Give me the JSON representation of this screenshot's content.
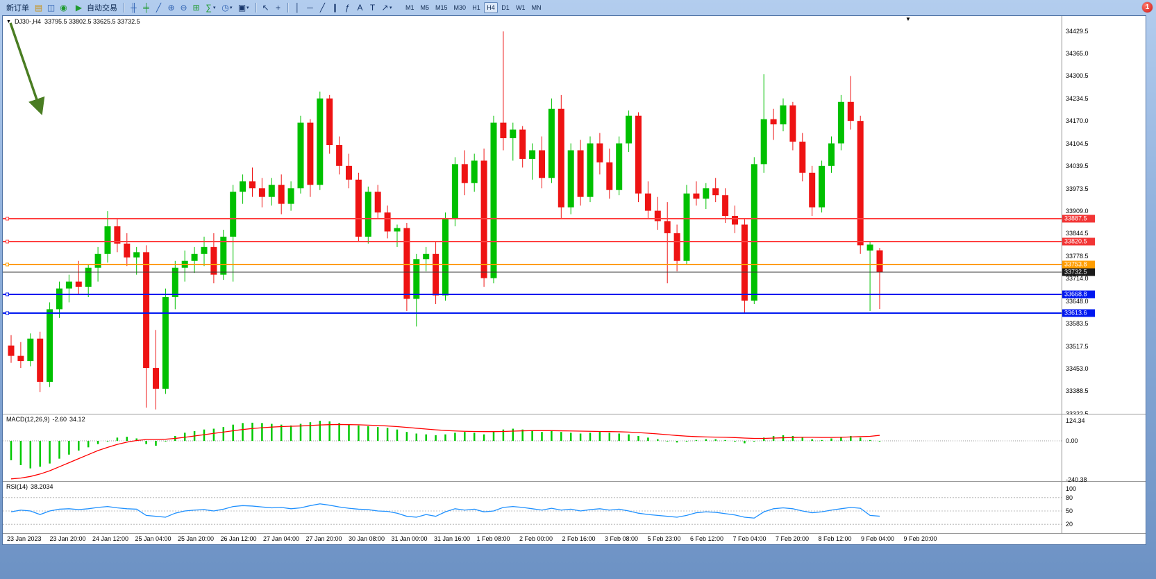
{
  "window": {
    "badge": "1"
  },
  "toolbar": {
    "new_order": "新订单",
    "auto_trading": "自动交易",
    "timeframes": [
      "M1",
      "M5",
      "M15",
      "M30",
      "H1",
      "H4",
      "D1",
      "W1",
      "MN"
    ],
    "active_timeframe": "H4"
  },
  "icons": {
    "triangle_down": "▼",
    "gold": "▤",
    "profile": "◫",
    "globe": "◉",
    "play": "▶",
    "bars": "╫",
    "candles": "╪",
    "line_chart": "╱",
    "zoom_in": "⊕",
    "zoom_out": "⊖",
    "tile": "⊞",
    "indicators": "∑",
    "clock": "◷",
    "template": "▣",
    "cursor": "↖",
    "crosshair": "+",
    "vline": "│",
    "hline": "─",
    "trendline": "╱",
    "channel": "∥",
    "fibonacci": "ƒ",
    "text": "A",
    "label": "T",
    "arrows": "↗",
    "dropdown": "▾"
  },
  "chart_header": {
    "symbol_tf": "DJ30-,H4",
    "ohlc": "33795.5 33802.5 33625.5 33732.5"
  },
  "price_axis_labels": [
    "34429.5",
    "34365.0",
    "34300.5",
    "34234.5",
    "34170.0",
    "34104.5",
    "34039.5",
    "33973.5",
    "33909.0",
    "33844.5",
    "33778.5",
    "33714.0",
    "33648.0",
    "33583.5",
    "33517.5",
    "33453.0",
    "33388.5",
    "33322.5"
  ],
  "macd": {
    "name": "MACD(12,26,9)",
    "value": "-2.60",
    "signal": "34.12",
    "axis_labels": [
      "124.34",
      "0.00",
      "-240.38"
    ]
  },
  "rsi": {
    "name": "RSI(14)",
    "value": "38.2034",
    "axis_labels": [
      "100",
      "80",
      "50",
      "20"
    ]
  },
  "chart_data": {
    "type": "candlestick",
    "symbol": "DJ30-",
    "timeframe": "H4",
    "ohlc_current": {
      "open": 33795.5,
      "high": 33802.5,
      "low": 33625.5,
      "close": 33732.5
    },
    "y_axis": {
      "top": 34429.5,
      "bottom": 33322.5
    },
    "colors": {
      "up": "#00c000",
      "down": "#ee1313"
    },
    "candles": [
      [
        33520,
        33550,
        33470,
        33490
      ],
      [
        33490,
        33530,
        33455,
        33475
      ],
      [
        33475,
        33555,
        33460,
        33540
      ],
      [
        33540,
        33560,
        33385,
        33415
      ],
      [
        33415,
        33645,
        33400,
        33625
      ],
      [
        33625,
        33705,
        33600,
        33685
      ],
      [
        33685,
        33725,
        33645,
        33705
      ],
      [
        33705,
        33765,
        33670,
        33690
      ],
      [
        33690,
        33755,
        33660,
        33745
      ],
      [
        33745,
        33805,
        33705,
        33785
      ],
      [
        33785,
        33909,
        33760,
        33865
      ],
      [
        33865,
        33885,
        33790,
        33815
      ],
      [
        33815,
        33845,
        33750,
        33775
      ],
      [
        33775,
        33805,
        33725,
        33790
      ],
      [
        33790,
        33810,
        33340,
        33455
      ],
      [
        33455,
        33565,
        33335,
        33395
      ],
      [
        33395,
        33685,
        33380,
        33660
      ],
      [
        33660,
        33765,
        33625,
        33745
      ],
      [
        33745,
        33795,
        33705,
        33765
      ],
      [
        33765,
        33805,
        33730,
        33785
      ],
      [
        33785,
        33835,
        33750,
        33805
      ],
      [
        33805,
        33845,
        33700,
        33725
      ],
      [
        33725,
        33855,
        33710,
        33835
      ],
      [
        33835,
        33985,
        33705,
        33965
      ],
      [
        33965,
        34015,
        33930,
        33995
      ],
      [
        33995,
        34035,
        33950,
        33975
      ],
      [
        33975,
        34005,
        33920,
        33950
      ],
      [
        33950,
        34005,
        33925,
        33985
      ],
      [
        33985,
        34015,
        33900,
        33930
      ],
      [
        33930,
        33995,
        33910,
        33975
      ],
      [
        33975,
        34185,
        33960,
        34165
      ],
      [
        34165,
        34175,
        33950,
        33985
      ],
      [
        33985,
        34255,
        33970,
        34235
      ],
      [
        34235,
        34245,
        34075,
        34100
      ],
      [
        34100,
        34125,
        34015,
        34040
      ],
      [
        34040,
        34075,
        33975,
        34000
      ],
      [
        34000,
        34020,
        33820,
        33835
      ],
      [
        33835,
        33980,
        33815,
        33965
      ],
      [
        33965,
        33985,
        33885,
        33905
      ],
      [
        33905,
        33925,
        33830,
        33850
      ],
      [
        33850,
        33870,
        33805,
        33860
      ],
      [
        33860,
        33875,
        33620,
        33655
      ],
      [
        33655,
        33785,
        33575,
        33770
      ],
      [
        33770,
        33805,
        33735,
        33785
      ],
      [
        33785,
        33820,
        33640,
        33665
      ],
      [
        33665,
        33905,
        33650,
        33885
      ],
      [
        33885,
        34065,
        33865,
        34045
      ],
      [
        34045,
        34085,
        33955,
        33990
      ],
      [
        33990,
        34075,
        33965,
        34055
      ],
      [
        34055,
        34090,
        33690,
        33715
      ],
      [
        33715,
        34185,
        33700,
        34165
      ],
      [
        34165,
        34429,
        34085,
        34120
      ],
      [
        34120,
        34165,
        34055,
        34145
      ],
      [
        34145,
        34155,
        34035,
        34060
      ],
      [
        34060,
        34105,
        34000,
        34085
      ],
      [
        34085,
        34125,
        33975,
        34005
      ],
      [
        34005,
        34235,
        33990,
        34205
      ],
      [
        34205,
        34245,
        33885,
        33920
      ],
      [
        33920,
        34105,
        33900,
        34085
      ],
      [
        34085,
        34115,
        33925,
        33950
      ],
      [
        33950,
        34125,
        33935,
        34105
      ],
      [
        34105,
        34135,
        34015,
        34050
      ],
      [
        34050,
        34090,
        33945,
        33970
      ],
      [
        33970,
        34125,
        33955,
        34105
      ],
      [
        34105,
        34200,
        34080,
        34185
      ],
      [
        34185,
        34195,
        33935,
        33960
      ],
      [
        33960,
        33995,
        33885,
        33910
      ],
      [
        33910,
        33950,
        33855,
        33880
      ],
      [
        33880,
        33935,
        33700,
        33845
      ],
      [
        33845,
        33870,
        33735,
        33765
      ],
      [
        33765,
        33985,
        33755,
        33960
      ],
      [
        33960,
        33995,
        33925,
        33945
      ],
      [
        33945,
        33990,
        33915,
        33975
      ],
      [
        33975,
        34005,
        33935,
        33955
      ],
      [
        33955,
        33975,
        33875,
        33895
      ],
      [
        33895,
        33925,
        33845,
        33870
      ],
      [
        33870,
        33885,
        33615,
        33650
      ],
      [
        33650,
        34065,
        33640,
        34045
      ],
      [
        34045,
        34305,
        34020,
        34175
      ],
      [
        34175,
        34205,
        34115,
        34160
      ],
      [
        34160,
        34235,
        34140,
        34215
      ],
      [
        34215,
        34225,
        34085,
        34110
      ],
      [
        34110,
        34135,
        33995,
        34020
      ],
      [
        34020,
        34040,
        33895,
        33920
      ],
      [
        33920,
        34055,
        33905,
        34040
      ],
      [
        34040,
        34125,
        34020,
        34105
      ],
      [
        34105,
        34245,
        34085,
        34225
      ],
      [
        34225,
        34300,
        34145,
        34170
      ],
      [
        34170,
        34185,
        33785,
        33810
      ],
      [
        33795,
        33820,
        33620,
        33812
      ],
      [
        33795.5,
        33802.5,
        33625.5,
        33732.5
      ]
    ],
    "horizontal_lines": [
      {
        "name": "resistance-line-1",
        "price": 33887.5,
        "label": "33887.5",
        "color": "#ff4040",
        "tag_bg": "#f23535",
        "width": 2
      },
      {
        "name": "resistance-line-2",
        "price": 33820.5,
        "label": "33820.5",
        "color": "#ff4040",
        "tag_bg": "#f23535",
        "width": 2
      },
      {
        "name": "pivot-line",
        "price": 33753.8,
        "label": "33753.8",
        "color": "#ff9d00",
        "tag_bg": "#ff9d00",
        "width": 2
      },
      {
        "name": "current-price-line",
        "price": 33732.5,
        "label": "33732.5",
        "color": "#3a3a3a",
        "tag_bg": "#1a1a1a",
        "width": 1
      },
      {
        "name": "support-line-1",
        "price": 33668.8,
        "label": "33668.8",
        "color": "#0018f0",
        "tag_bg": "#0018f0",
        "width": 2
      },
      {
        "name": "support-line-2",
        "price": 33613.6,
        "label": "33613.6",
        "color": "#0018f0",
        "tag_bg": "#0018f0",
        "width": 2
      }
    ],
    "indicators": {
      "macd": {
        "params": "12,26,9",
        "range": [
          -240.38,
          124.34
        ],
        "color_histogram": "#00c800",
        "color_signal": "#ff0000",
        "histogram": [
          -120,
          -150,
          -170,
          -160,
          -140,
          -110,
          -85,
          -60,
          -40,
          -20,
          0,
          20,
          25,
          15,
          -20,
          -30,
          0,
          30,
          50,
          60,
          70,
          75,
          85,
          100,
          110,
          112,
          110,
          105,
          100,
          95,
          105,
          115,
          124,
          120,
          110,
          100,
          95,
          90,
          85,
          80,
          70,
          55,
          45,
          40,
          35,
          40,
          50,
          55,
          50,
          40,
          55,
          70,
          75,
          70,
          60,
          55,
          60,
          55,
          50,
          45,
          50,
          55,
          50,
          45,
          40,
          30,
          20,
          10,
          0,
          -10,
          -5,
          5,
          10,
          10,
          5,
          -5,
          -15,
          0,
          20,
          30,
          35,
          30,
          20,
          10,
          5,
          15,
          25,
          30,
          20,
          5,
          -2.6
        ],
        "signal": [
          -235,
          -230,
          -220,
          -205,
          -185,
          -160,
          -135,
          -110,
          -85,
          -60,
          -40,
          -22,
          -8,
          2,
          8,
          8,
          10,
          15,
          22,
          30,
          38,
          46,
          54,
          62,
          70,
          76,
          81,
          85,
          88,
          90,
          92,
          95,
          98,
          100,
          101,
          100,
          99,
          97,
          95,
          92,
          88,
          83,
          78,
          73,
          68,
          64,
          61,
          59,
          58,
          57,
          57,
          58,
          60,
          62,
          63,
          63,
          63,
          62,
          61,
          60,
          59,
          58,
          57,
          56,
          54,
          51,
          47,
          43,
          38,
          33,
          29,
          26,
          24,
          23,
          22,
          20,
          17,
          15,
          15,
          17,
          19,
          21,
          22,
          22,
          21,
          21,
          22,
          24,
          26,
          28,
          34.12
        ]
      },
      "rsi": {
        "params": "14",
        "levels": [
          20,
          50,
          80
        ],
        "color": "#1e90ff",
        "values": [
          48,
          52,
          50,
          42,
          50,
          54,
          55,
          53,
          55,
          58,
          60,
          57,
          55,
          54,
          40,
          38,
          36,
          45,
          50,
          52,
          53,
          50,
          54,
          60,
          62,
          61,
          59,
          57,
          58,
          55,
          57,
          62,
          66,
          63,
          59,
          56,
          54,
          53,
          50,
          49,
          45,
          38,
          36,
          42,
          38,
          48,
          55,
          52,
          54,
          48,
          50,
          58,
          60,
          58,
          55,
          52,
          56,
          52,
          54,
          50,
          53,
          55,
          52,
          54,
          50,
          45,
          42,
          40,
          38,
          36,
          40,
          46,
          48,
          47,
          44,
          41,
          36,
          34,
          48,
          55,
          57,
          55,
          50,
          46,
          48,
          52,
          55,
          58,
          56,
          40,
          38.2
        ]
      }
    },
    "time_labels": [
      "23 Jan 2023",
      "23 Jan 20:00",
      "24 Jan 12:00",
      "25 Jan 04:00",
      "25 Jan 20:00",
      "26 Jan 12:00",
      "27 Jan 04:00",
      "27 Jan 20:00",
      "30 Jan 08:00",
      "31 Jan 00:00",
      "31 Jan 16:00",
      "1 Feb 08:00",
      "2 Feb 00:00",
      "2 Feb 16:00",
      "3 Feb 08:00",
      "5 Feb 23:00",
      "6 Feb 12:00",
      "7 Feb 04:00",
      "7 Feb 20:00",
      "8 Feb 12:00",
      "9 Feb 04:00",
      "9 Feb 20:00"
    ]
  }
}
